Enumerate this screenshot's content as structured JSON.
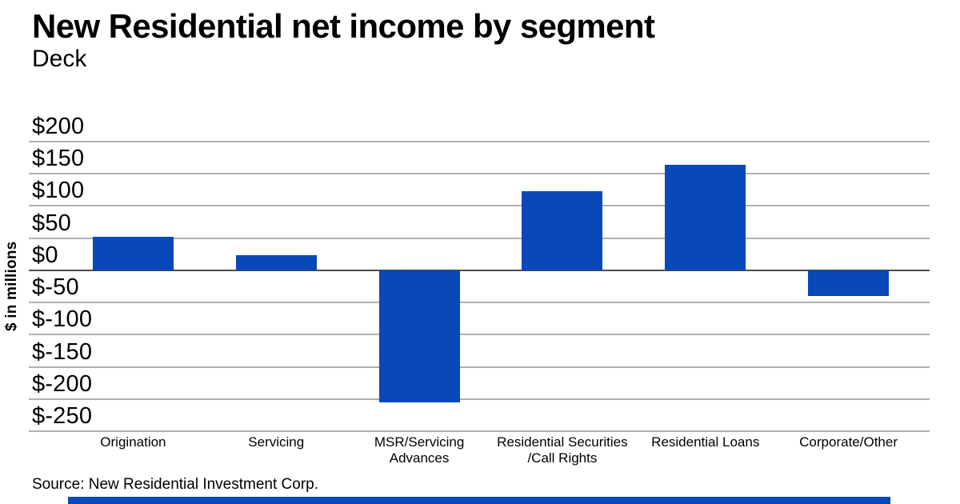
{
  "header": {
    "title": "New Residential net income by segment",
    "deck": "Deck"
  },
  "chart_data": {
    "type": "bar",
    "title": "New Residential net income by segment",
    "subtitle": "Deck",
    "categories": [
      "Origination",
      "Servicing",
      "MSR/Servicing\nAdvances",
      "Residential Securities\n/Call Rights",
      "Residential Loans",
      "Corporate/Other"
    ],
    "values": [
      52,
      23,
      -205,
      123,
      164,
      -40
    ],
    "xlabel": "",
    "ylabel": "$ in millions",
    "ylim": [
      -250,
      200
    ],
    "ytick_step": 50,
    "ytick_labels": [
      "$200",
      "$150",
      "$100",
      "$50",
      "$0",
      "$-50",
      "$-100",
      "$-150",
      "$-200",
      "$-250"
    ],
    "grid": true,
    "legend": "none",
    "bar_color": "#0848b8"
  },
  "source": {
    "text": "Source: New Residential Investment Corp."
  },
  "colors": {
    "accent": "#0848b8",
    "gridline": "#b0b0b0",
    "zero_line": "#4d4d4d",
    "text": "#000000",
    "background": "#ffffff"
  }
}
